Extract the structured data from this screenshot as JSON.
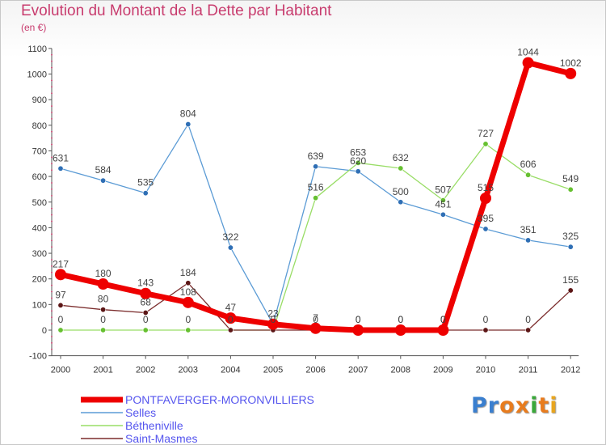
{
  "title": "Evolution du Montant de la Dette par Habitant",
  "unit": "(en €)",
  "brand": {
    "letters": [
      "P",
      "r",
      "o",
      "x",
      "i",
      "t",
      "i"
    ],
    "colors": [
      "#3a7fcf",
      "#3a7fcf",
      "#e87c1e",
      "#e87c1e",
      "#3aa83a",
      "#e87c1e",
      "#e8a51e"
    ]
  },
  "chart_data": {
    "type": "line",
    "title": "Evolution du Montant de la Dette par Habitant",
    "ylabel": "(en €)",
    "xlabel": "",
    "x": [
      "2000",
      "2001",
      "2002",
      "2003",
      "2004",
      "2005",
      "2006",
      "2007",
      "2008",
      "2009",
      "2010",
      "2011",
      "2012"
    ],
    "ylim": [
      -100,
      1100
    ],
    "yticks": [
      -100,
      0,
      100,
      200,
      300,
      400,
      500,
      600,
      700,
      800,
      900,
      1000,
      1100
    ],
    "ytick_labels": [
      "-100",
      "0",
      "100",
      "200",
      "300",
      "400",
      "500",
      "600",
      "700",
      "800",
      "900",
      "1000",
      "1100"
    ],
    "grid": false,
    "legend_position": "bottom-left",
    "series": [
      {
        "name": "Selles",
        "color": "#5b9bd5",
        "point_color": "#2f6fb5",
        "values": [
          631,
          584,
          535,
          804,
          322,
          23,
          639,
          620,
          500,
          451,
          395,
          351,
          325
        ],
        "labels": [
          "631",
          "584",
          "535",
          "804",
          "322",
          "23",
          "639",
          "620",
          "500",
          "451",
          "395",
          "351",
          "325"
        ]
      },
      {
        "name": "Bétheniville",
        "color": "#99dd66",
        "point_color": "#66c030",
        "values": [
          0,
          0,
          0,
          0,
          0,
          0,
          516,
          653,
          632,
          507,
          727,
          606,
          549
        ],
        "labels": [
          "0",
          "0",
          "0",
          "0",
          "",
          "",
          "516",
          "653",
          "632",
          "507",
          "727",
          "606",
          "549"
        ]
      },
      {
        "name": "Saint-Masmes",
        "color": "#7b2c2c",
        "point_color": "#5c1616",
        "values": [
          97,
          80,
          68,
          184,
          0,
          0,
          0,
          0,
          0,
          0,
          0,
          0,
          155
        ],
        "labels": [
          "97",
          "80",
          "68",
          "184",
          "0",
          "0",
          "0",
          "0",
          "0",
          "0",
          "0",
          "0",
          "155"
        ]
      },
      {
        "name": "PONTFAVERGER-MORONVILLIERS",
        "color": "#ee0000",
        "point_color": "#ee0000",
        "values": [
          217,
          180,
          143,
          108,
          47,
          23,
          7,
          0,
          0,
          0,
          515,
          1044,
          1002
        ],
        "labels": [
          "217",
          "180",
          "143",
          "108",
          "47",
          "",
          "7",
          "0",
          "0",
          "0",
          "515",
          "1044",
          "1002"
        ]
      }
    ],
    "legend_order": [
      "PONTFAVERGER-MORONVILLIERS",
      "Selles",
      "Bétheniville",
      "Saint-Masmes"
    ],
    "legend_label_color": "#5555ee"
  }
}
